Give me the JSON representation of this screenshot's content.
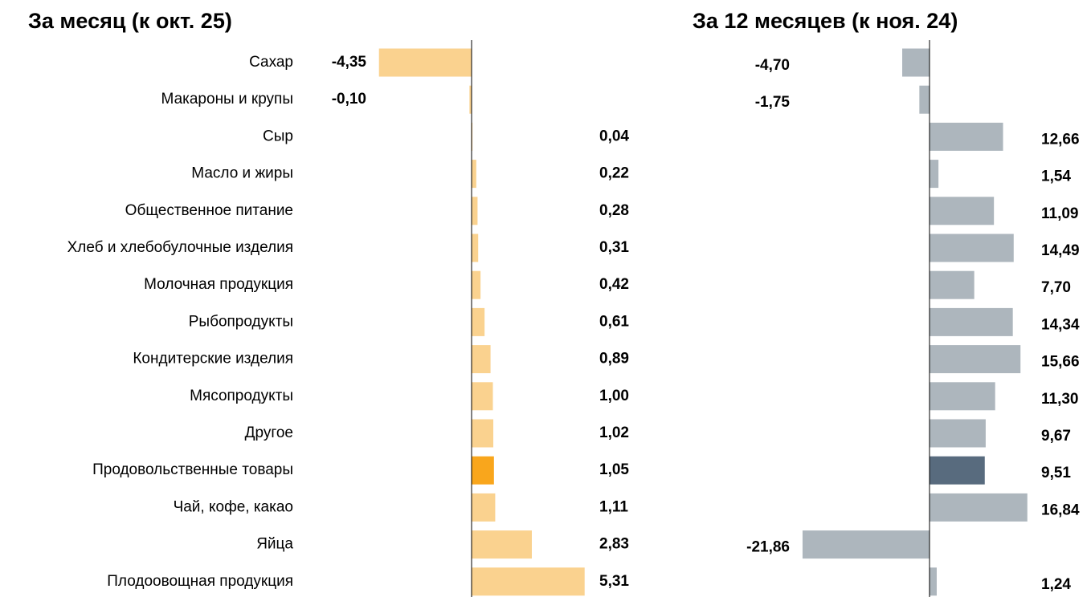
{
  "chart_data": [
    {
      "type": "barh",
      "title": "За месяц (к окт. 25)",
      "categories": [
        "Сахар",
        "Макароны и крупы",
        "Сыр",
        "Масло и жиры",
        "Общественное питание",
        "Хлеб и хлебобулочные изделия",
        "Молочная продукция",
        "Рыбопродукты",
        "Кондитерские изделия",
        "Мясопродукты",
        "Другое",
        "Продовольственные товары",
        "Чай, кофе, какао",
        "Яйца",
        "Плодоовощная продукция"
      ],
      "values": [
        -4.35,
        -0.1,
        0.04,
        0.22,
        0.28,
        0.31,
        0.42,
        0.61,
        0.89,
        1.0,
        1.02,
        1.05,
        1.11,
        2.83,
        5.31
      ],
      "value_labels": [
        "-4,35",
        "-0,10",
        "0,04",
        "0,22",
        "0,28",
        "0,31",
        "0,42",
        "0,61",
        "0,89",
        "1,00",
        "1,02",
        "1,05",
        "1,11",
        "2,83",
        "5,31"
      ],
      "colors": [
        "#fad28f",
        "#fad28f",
        "#fad28f",
        "#fad28f",
        "#fad28f",
        "#fad28f",
        "#fad28f",
        "#fad28f",
        "#fad28f",
        "#fad28f",
        "#fad28f",
        "#f9a61c",
        "#fad28f",
        "#fad28f",
        "#fad28f"
      ]
    },
    {
      "type": "barh",
      "title": "За 12 месяцев (к ноя. 24)",
      "values": [
        -4.7,
        -1.75,
        12.66,
        1.54,
        11.09,
        14.49,
        7.7,
        14.34,
        15.66,
        11.3,
        9.67,
        9.51,
        16.84,
        -21.86,
        1.24
      ],
      "value_labels": [
        "-4,70",
        "-1,75",
        "12,66",
        "1,54",
        "11,09",
        "14,49",
        "7,70",
        "14,34",
        "15,66",
        "11,30",
        "9,67",
        "9,51",
        "16,84",
        "-21,86",
        "1,24"
      ],
      "colors": [
        "#adb6bd",
        "#adb6bd",
        "#adb6bd",
        "#adb6bd",
        "#adb6bd",
        "#adb6bd",
        "#adb6bd",
        "#adb6bd",
        "#adb6bd",
        "#adb6bd",
        "#adb6bd",
        "#586b7e",
        "#adb6bd",
        "#adb6bd",
        "#adb6bd"
      ]
    }
  ]
}
